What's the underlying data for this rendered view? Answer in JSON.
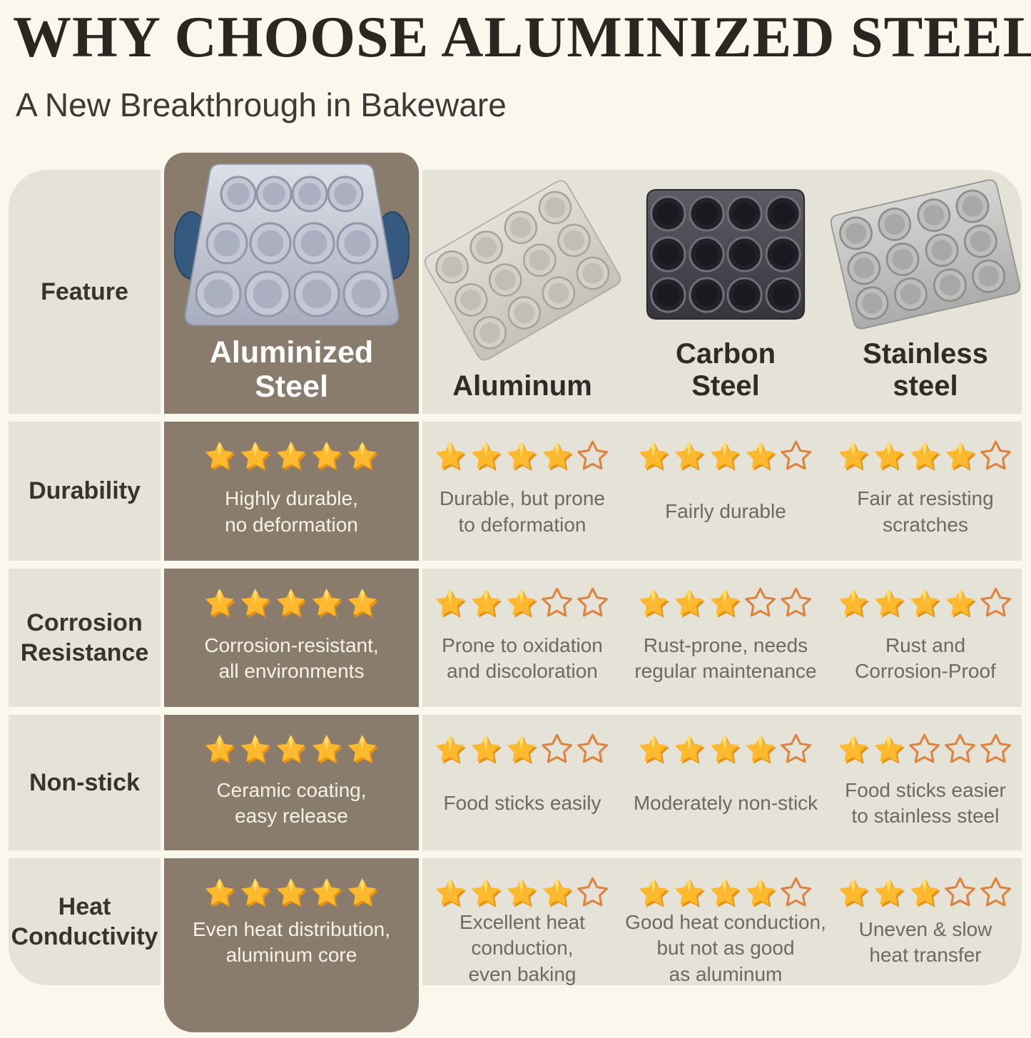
{
  "header": {
    "title": "WHY CHOOSE ALUMINIZED STEEL?",
    "subtitle": "A New Breakthrough in Bakeware"
  },
  "table": {
    "feature_header": "Feature",
    "max_stars": 5,
    "columns": [
      {
        "label": "Aluminized Steel",
        "image": "aluminized-steel-muffin-pan-icon",
        "highlight": true
      },
      {
        "label": "Aluminum",
        "image": "aluminum-muffin-pan-icon",
        "highlight": false
      },
      {
        "label": "Carbon Steel",
        "image": "carbon-steel-muffin-pan-icon",
        "highlight": false
      },
      {
        "label": "Stainless steel",
        "image": "stainless-steel-muffin-pan-icon",
        "highlight": false
      }
    ],
    "rows": [
      {
        "feature": "Durability",
        "cells": [
          {
            "stars": 5,
            "text": "Highly durable,\nno deformation"
          },
          {
            "stars": 4,
            "text": "Durable, but prone\nto deformation"
          },
          {
            "stars": 4,
            "text": "Fairly durable"
          },
          {
            "stars": 4,
            "text": "Fair at resisting\nscratches"
          }
        ]
      },
      {
        "feature": "Corrosion\nResistance",
        "cells": [
          {
            "stars": 5,
            "text": "Corrosion-resistant,\nall environments"
          },
          {
            "stars": 3,
            "text": "Prone to oxidation\nand discoloration"
          },
          {
            "stars": 3,
            "text": "Rust-prone, needs\nregular maintenance"
          },
          {
            "stars": 4,
            "text": "Rust and\nCorrosion-Proof"
          }
        ]
      },
      {
        "feature": "Non-stick",
        "cells": [
          {
            "stars": 5,
            "text": "Ceramic coating,\neasy release"
          },
          {
            "stars": 3,
            "text": "Food sticks easily"
          },
          {
            "stars": 4,
            "text": "Moderately non-stick"
          },
          {
            "stars": 2,
            "text": "Food sticks easier\nto stainless steel"
          }
        ]
      },
      {
        "feature": "Heat\nConductivity",
        "cells": [
          {
            "stars": 5,
            "text": "Even heat distribution,\naluminum core"
          },
          {
            "stars": 4,
            "text": "Excellent heat\nconduction,\neven baking"
          },
          {
            "stars": 4,
            "text": "Good heat conduction,\nbut not as good\nas aluminum"
          },
          {
            "stars": 3,
            "text": "Uneven & slow\nheat transfer"
          }
        ]
      }
    ]
  },
  "colors": {
    "page_background": "#FAF8EC",
    "band_beige": "#E5E2D7",
    "highlight_taupe": "#8A7C6D",
    "star_gold": "#FFB92E",
    "star_shadow": "#E8920E",
    "star_outline": "#DE823E",
    "title_text": "#2A2723",
    "body_text": "#6B6A63"
  }
}
